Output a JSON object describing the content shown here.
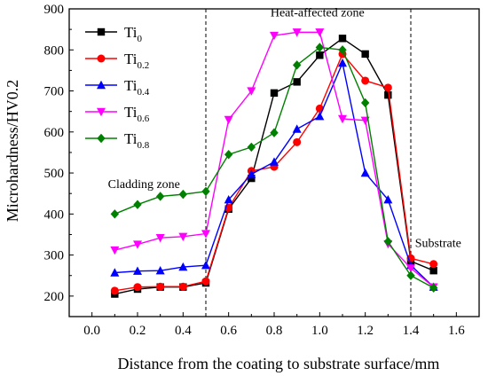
{
  "chart_data": {
    "type": "line",
    "xlabel": "Distance from the coating to substrate surface/mm",
    "ylabel": "Microhardness/HV0.2",
    "xlim": [
      -0.1,
      1.7
    ],
    "ylim": [
      150,
      900
    ],
    "xticks": [
      "0.0",
      "0.2",
      "0.4",
      "0.6",
      "0.8",
      "1.0",
      "1.2",
      "1.4",
      "1.6"
    ],
    "yticks": [
      "200",
      "300",
      "400",
      "500",
      "600",
      "700",
      "800",
      "900"
    ],
    "x": [
      0.1,
      0.2,
      0.3,
      0.4,
      0.5,
      0.6,
      0.7,
      0.8,
      0.9,
      1.0,
      1.1,
      1.2,
      1.3,
      1.4,
      1.5
    ],
    "series": [
      {
        "name": "Ti",
        "subscript": "0",
        "color": "#000000",
        "marker": "square",
        "values": [
          205,
          217,
          222,
          222,
          232,
          412,
          487,
          695,
          722,
          787,
          828,
          790,
          690,
          285,
          262
        ]
      },
      {
        "name": "Ti",
        "subscript": "0.2",
        "color": "#ff0000",
        "marker": "circle",
        "values": [
          213,
          222,
          223,
          223,
          236,
          415,
          505,
          515,
          575,
          657,
          790,
          725,
          708,
          292,
          278
        ]
      },
      {
        "name": "Ti",
        "subscript": "0.4",
        "color": "#0000ff",
        "marker": "triangle-up",
        "values": [
          257,
          261,
          262,
          271,
          275,
          435,
          497,
          527,
          607,
          638,
          768,
          500,
          435,
          275,
          222
        ]
      },
      {
        "name": "Ti",
        "subscript": "0.6",
        "color": "#ff00ff",
        "marker": "triangle-down",
        "values": [
          312,
          326,
          342,
          345,
          352,
          630,
          700,
          835,
          843,
          843,
          632,
          628,
          327,
          268,
          222
        ]
      },
      {
        "name": "Ti",
        "subscript": "0.8",
        "color": "#008000",
        "marker": "diamond",
        "values": [
          400,
          423,
          443,
          448,
          455,
          545,
          563,
          598,
          763,
          806,
          800,
          671,
          333,
          250,
          220
        ]
      }
    ],
    "dividers_x": [
      0.5,
      1.4
    ],
    "annotations": [
      {
        "text": "Cladding zone",
        "x": 0.07,
        "y": 463
      },
      {
        "text": "Heat-affected zone",
        "x": 0.99,
        "y": 882
      },
      {
        "text": "Substrate",
        "x": 1.52,
        "y": 320
      }
    ],
    "legend": "top-left"
  }
}
